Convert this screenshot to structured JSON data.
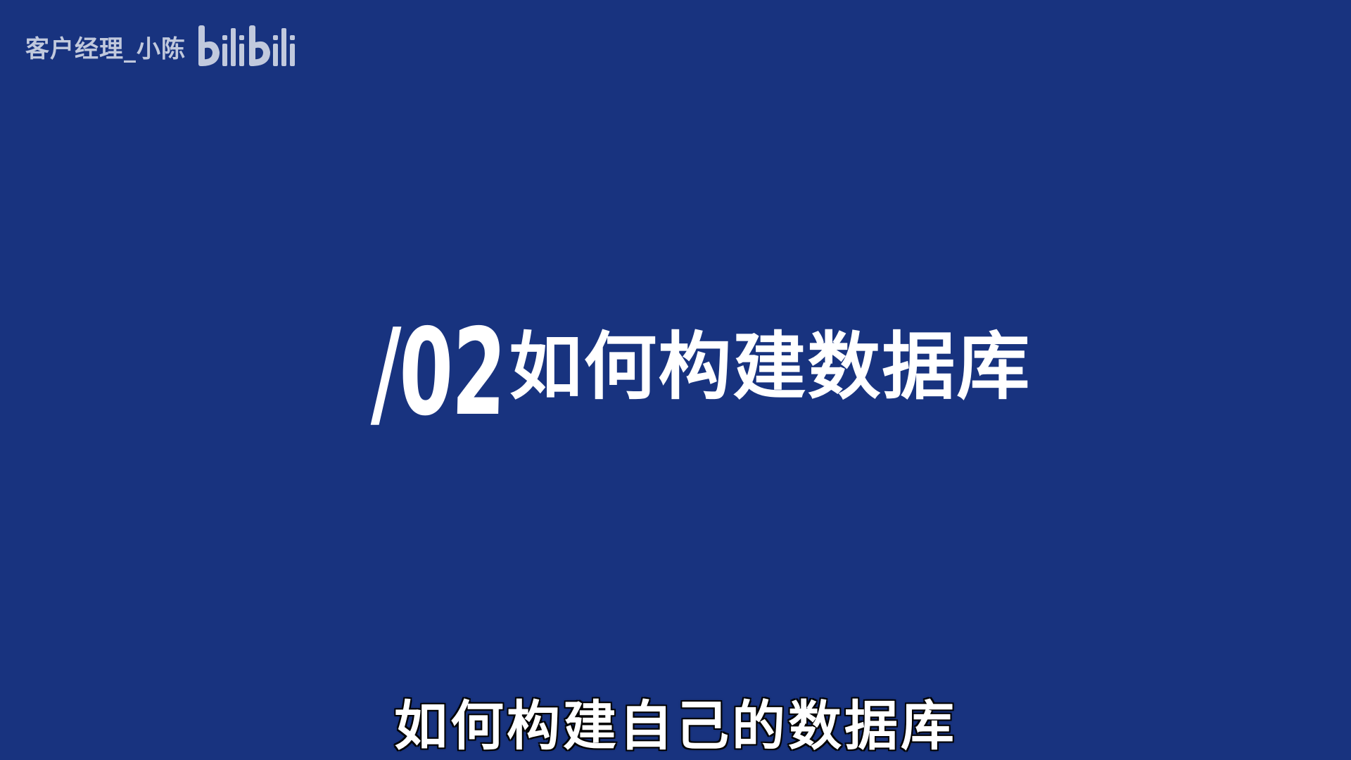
{
  "watermark": {
    "author": "客户经理_小陈",
    "logo_text": "bilibili",
    "logo_icon": "bilibili-logo-icon"
  },
  "section": {
    "number": "/02",
    "heading": "如何构建数据库"
  },
  "subtitle": {
    "text": "如何构建自己的数据库"
  },
  "colors": {
    "background": "#18337f",
    "text": "#ffffff",
    "watermark": "#dfe4ee",
    "subtitle_outline": "#111111"
  }
}
